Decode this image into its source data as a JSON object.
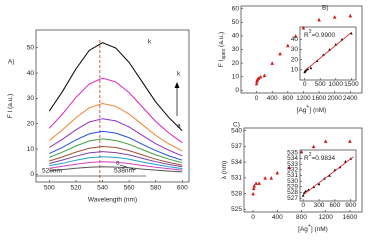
{
  "chart_data": [
    {
      "type": "line",
      "panel_label": "A)",
      "xlabel": "Wavelength (nm)",
      "ylabel": [
        "F I (a.u.)"
      ],
      "xlim": [
        490,
        605
      ],
      "ylim": [
        -3,
        57
      ],
      "xticks": [
        500,
        520,
        540,
        560,
        580,
        600
      ],
      "yticks": [
        0,
        10,
        20,
        30,
        40,
        50
      ],
      "x": [
        500,
        510,
        520,
        530,
        540,
        550,
        560,
        570,
        580,
        590,
        600
      ],
      "reference_line": 538,
      "annotations": [
        {
          "text": "k",
          "color": "#000000"
        },
        {
          "text": "a",
          "color": "#000000"
        },
        {
          "text": "528nm",
          "color": "#2f5fd0"
        },
        {
          "text": "538nm",
          "color": "#e0201e"
        },
        {
          "text": "k",
          "color": "#000000"
        },
        {
          "text": "a",
          "color": "#000000"
        }
      ],
      "series": [
        {
          "color": "#555555",
          "values": [
            1.4,
            1.9,
            2.4,
            2.8,
            3,
            2.9,
            2.6,
            2.1,
            1.7,
            1.3,
            1
          ]
        },
        {
          "color": "#d040c0",
          "values": [
            2.4,
            3.2,
            4,
            4.7,
            5,
            4.8,
            4.3,
            3.5,
            2.8,
            2.2,
            1.7
          ]
        },
        {
          "color": "#20a0d0",
          "values": [
            3.4,
            4.4,
            5.6,
            6.6,
            7,
            6.7,
            6,
            4.9,
            3.9,
            3,
            2.3
          ]
        },
        {
          "color": "#8040a0",
          "values": [
            4.3,
            5.7,
            7.2,
            8.5,
            9,
            8.6,
            7.7,
            6.3,
            5,
            3.9,
            3
          ]
        },
        {
          "color": "#a05030",
          "values": [
            5.3,
            6.9,
            8.8,
            10.3,
            11,
            10.6,
            9.4,
            7.7,
            6,
            4.7,
            3.6
          ]
        },
        {
          "color": "#40a040",
          "values": [
            6.7,
            8.8,
            11.2,
            13.2,
            14,
            13.4,
            11.9,
            9.8,
            7.7,
            6,
            4.6
          ]
        },
        {
          "color": "#2050e0",
          "values": [
            8.2,
            10.7,
            13.6,
            16,
            17,
            16.3,
            14.5,
            11.9,
            9.4,
            7.3,
            5.6
          ]
        },
        {
          "color": "#9030c0",
          "values": [
            10.6,
            13.9,
            17.6,
            20.7,
            22,
            21.1,
            18.7,
            15.4,
            12.1,
            9.5,
            7.3
          ]
        },
        {
          "color": "#f08030",
          "values": [
            13.4,
            17.6,
            22.4,
            26.3,
            28,
            26.9,
            23.8,
            19.6,
            15.4,
            12,
            9.2
          ]
        },
        {
          "color": "#e020c0",
          "values": [
            18.2,
            23.9,
            30.4,
            35.7,
            38,
            36.5,
            32.3,
            26.6,
            20.9,
            16.3,
            12.5
          ]
        },
        {
          "color": "#000000",
          "values": [
            25,
            32.8,
            41.6,
            48.9,
            52,
            49.9,
            44.2,
            36.4,
            28.6,
            22.4,
            17.2
          ]
        }
      ]
    },
    {
      "type": "scatter",
      "panel_label": "B)",
      "xlabel": [
        "[Ag",
        "+",
        "] (nM)"
      ],
      "ylabel": [
        "F I",
        "apex",
        " (a.u.)"
      ],
      "xlim": [
        -400,
        2700
      ],
      "ylim": [
        -2,
        62
      ],
      "xticks": [
        0,
        400,
        800,
        1200,
        1600,
        2000,
        2400
      ],
      "yticks": [
        0,
        10,
        20,
        30,
        40,
        50,
        60
      ],
      "series": [
        {
          "color": "#d01818",
          "x": [
            0,
            10,
            20,
            50,
            100,
            200,
            400,
            600,
            800,
            1000,
            1200,
            1600,
            2000,
            2400
          ],
          "values": [
            5,
            7,
            8,
            9,
            10,
            11,
            20,
            27,
            33,
            40,
            46,
            52,
            54,
            55
          ]
        }
      ]
    },
    {
      "type": "scatter",
      "r2": [
        "R",
        "2",
        "=0.9900"
      ],
      "xlim": [
        -150,
        1650
      ],
      "ylim": [
        0,
        52
      ],
      "xticks": [
        0,
        500,
        1000,
        1500
      ],
      "yticks": [
        10,
        20,
        30,
        40
      ],
      "series": [
        {
          "color": "#000000",
          "x": [
            0,
            20,
            50,
            100,
            200,
            400,
            600,
            800,
            1000,
            1200,
            1500
          ],
          "values": [
            8,
            9,
            10,
            11,
            12,
            19,
            25,
            30,
            35,
            40,
            46
          ]
        },
        {
          "type": "line",
          "color": "#d01818",
          "x": [
            0,
            1500
          ],
          "values": [
            9,
            46.5
          ]
        }
      ]
    },
    {
      "type": "scatter",
      "panel_label": "C)",
      "xlabel": [
        "[Ag",
        "+",
        "] (nM)"
      ],
      "ylabel": [
        "λ (nm)"
      ],
      "xlim": [
        -150,
        1800
      ],
      "ylim": [
        524.5,
        540.5
      ],
      "xticks": [
        0,
        400,
        800,
        1200,
        1600
      ],
      "yticks": [
        525,
        528,
        531,
        534,
        537,
        540
      ],
      "series": [
        {
          "color": "#d01818",
          "x": [
            0,
            10,
            20,
            50,
            100,
            200,
            300,
            400,
            600,
            800,
            1000,
            1200,
            1600
          ],
          "values": [
            528,
            529,
            529.5,
            530,
            530,
            531,
            531,
            532,
            533,
            536,
            537,
            538,
            538
          ]
        }
      ]
    },
    {
      "type": "scatter",
      "r2": [
        "R",
        "2",
        "=0.9834"
      ],
      "xlim": [
        -60,
        1000
      ],
      "ylim": [
        526.5,
        535.5
      ],
      "xticks": [
        0,
        300,
        600,
        900
      ],
      "yticks": [
        527,
        528,
        529,
        530,
        531,
        532,
        533,
        534,
        535
      ],
      "series": [
        {
          "color": "#000000",
          "x": [
            0,
            20,
            50,
            100,
            200,
            300,
            400,
            500,
            600,
            700,
            800,
            900
          ],
          "values": [
            527.5,
            528,
            528.3,
            528.5,
            529,
            529.5,
            530.5,
            531,
            532,
            532.5,
            533.5,
            534
          ]
        },
        {
          "type": "line",
          "color": "#d01818",
          "x": [
            0,
            950
          ],
          "values": [
            527.6,
            534.3
          ]
        }
      ]
    }
  ]
}
